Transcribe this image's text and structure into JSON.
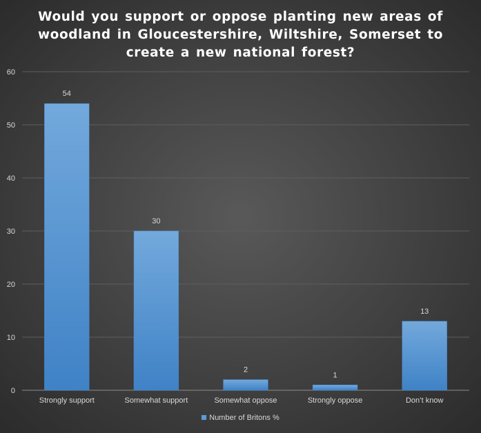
{
  "chart_data": {
    "type": "bar",
    "title_lines": [
      "Would you support  or oppose  planting  new areas of",
      "woodland  in Gloucestershire, Wiltshire, Somerset to",
      "create  a new national  forest?"
    ],
    "categories": [
      "Strongly support",
      "Somewhat support",
      "Somewhat oppose",
      "Strongly oppose",
      "Don’t know"
    ],
    "series": [
      {
        "name": "Number of Britons %",
        "values": [
          54,
          30,
          2,
          1,
          13
        ]
      }
    ],
    "data_labels": [
      "54",
      "30",
      "2",
      "1",
      "13"
    ],
    "ylim": [
      0,
      60
    ],
    "yticks": [
      "0",
      "10",
      "20",
      "30",
      "40",
      "50",
      "60"
    ],
    "grid": true,
    "legend_position": "bottom",
    "bar_color": "#5b9bd5"
  }
}
